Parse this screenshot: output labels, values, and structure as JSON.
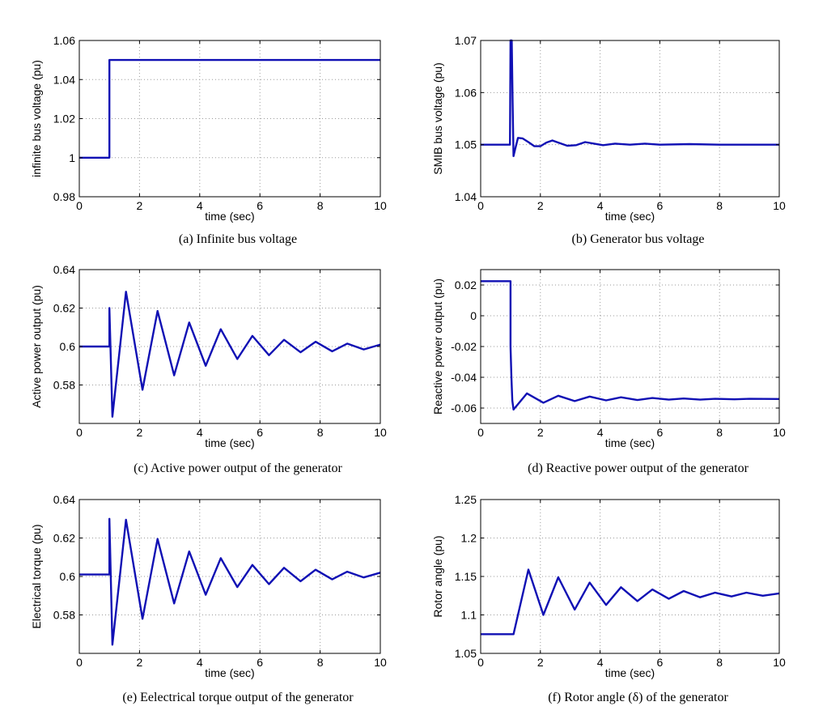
{
  "chart_data": [
    {
      "type": "line",
      "caption": "(a)  Infinite bus voltage",
      "xlabel": "time (sec)",
      "ylabel": "infinite bus voltage (pu)",
      "xlim": [
        0,
        10
      ],
      "ylim": [
        0.98,
        1.06
      ],
      "xticks": [
        0,
        2,
        4,
        6,
        8,
        10
      ],
      "yticks": [
        0.98,
        1,
        1.02,
        1.04,
        1.06
      ],
      "yticklabels": [
        "0.98",
        "1",
        "1.02",
        "1.04",
        "1.06"
      ],
      "grid": true,
      "series": [
        {
          "color": "#1010b4",
          "x": [
            0,
            1,
            1,
            10
          ],
          "y": [
            1.0,
            1.0,
            1.05,
            1.05
          ]
        }
      ]
    },
    {
      "type": "line",
      "caption": "(b)  Generator bus voltage",
      "xlabel": "time (sec)",
      "ylabel": "SMIB bus voltage (pu)",
      "xlim": [
        0,
        10
      ],
      "ylim": [
        1.04,
        1.07
      ],
      "xticks": [
        0,
        2,
        4,
        6,
        8,
        10
      ],
      "yticks": [
        1.04,
        1.05,
        1.06,
        1.07
      ],
      "yticklabels": [
        "1.04",
        "1.05",
        "1.06",
        "1.07"
      ],
      "grid": true,
      "series": [
        {
          "color": "#1010b4",
          "x": [
            0,
            0.98,
            0.99,
            1.0,
            1.04,
            1.07,
            1.1,
            1.15,
            1.25,
            1.4,
            1.6,
            1.8,
            2.0,
            2.2,
            2.4,
            2.6,
            2.9,
            3.2,
            3.5,
            3.8,
            4.1,
            4.5,
            5.0,
            5.5,
            6.0,
            7.0,
            8.0,
            9.0,
            10.0
          ],
          "y": [
            1.05,
            1.05,
            1.058,
            1.07,
            1.07,
            1.058,
            1.0478,
            1.049,
            1.0513,
            1.0512,
            1.0505,
            1.0497,
            1.0497,
            1.0504,
            1.0508,
            1.0504,
            1.0498,
            1.0499,
            1.0505,
            1.0502,
            1.0499,
            1.0502,
            1.05,
            1.0502,
            1.05,
            1.0501,
            1.05,
            1.05,
            1.05
          ]
        }
      ]
    },
    {
      "type": "line",
      "caption": "(c)  Active power output of the generator",
      "xlabel": "time (sec)",
      "ylabel": "Active power output (pu)",
      "xlim": [
        0,
        10
      ],
      "ylim": [
        0.56,
        0.64
      ],
      "xticks": [
        0,
        2,
        4,
        6,
        8,
        10
      ],
      "yticks": [
        0.58,
        0.6,
        0.62,
        0.64
      ],
      "yticklabels": [
        "0.58",
        "0.6",
        "0.62",
        "0.64"
      ],
      "grid": true,
      "series": [
        {
          "color": "#1010b4",
          "x": [
            0,
            1.0,
            1.0,
            1.1,
            1.55,
            2.1,
            2.6,
            3.15,
            3.65,
            4.2,
            4.7,
            5.25,
            5.75,
            6.3,
            6.8,
            7.35,
            7.85,
            8.4,
            8.9,
            9.45,
            10.0
          ],
          "y": [
            0.6,
            0.6,
            0.62,
            0.5635,
            0.6285,
            0.5775,
            0.6185,
            0.585,
            0.6125,
            0.59,
            0.609,
            0.5935,
            0.6055,
            0.5955,
            0.6035,
            0.597,
            0.6025,
            0.5975,
            0.6015,
            0.5985,
            0.601
          ]
        }
      ]
    },
    {
      "type": "line",
      "caption": "(d)  Reactive power output of the generator",
      "xlabel": "time (sec)",
      "ylabel": "Reactive power output (pu)",
      "xlim": [
        0,
        10
      ],
      "ylim": [
        -0.07,
        0.03
      ],
      "xticks": [
        0,
        2,
        4,
        6,
        8,
        10
      ],
      "yticks": [
        -0.06,
        -0.04,
        -0.02,
        0,
        0.02
      ],
      "yticklabels": [
        "-0.06",
        "-0.04",
        "-0.02",
        "0",
        "0.02"
      ],
      "grid": true,
      "series": [
        {
          "color": "#1010b4",
          "x": [
            0,
            1.0,
            1.0,
            1.03,
            1.06,
            1.1,
            1.55,
            2.1,
            2.6,
            3.15,
            3.65,
            4.2,
            4.7,
            5.25,
            5.75,
            6.3,
            6.8,
            7.35,
            7.85,
            8.5,
            9.0,
            10.0
          ],
          "y": [
            0.0225,
            0.0225,
            -0.02,
            -0.04,
            -0.055,
            -0.061,
            -0.0505,
            -0.0565,
            -0.052,
            -0.0555,
            -0.0525,
            -0.055,
            -0.053,
            -0.0548,
            -0.0535,
            -0.0545,
            -0.0538,
            -0.0545,
            -0.054,
            -0.0543,
            -0.054,
            -0.0541
          ]
        }
      ]
    },
    {
      "type": "line",
      "caption": "(e)  Eelectrical torque output of the generator",
      "xlabel": "time (sec)",
      "ylabel": "Electrical torque (pu)",
      "xlim": [
        0,
        10
      ],
      "ylim": [
        0.56,
        0.64
      ],
      "xticks": [
        0,
        2,
        4,
        6,
        8,
        10
      ],
      "yticks": [
        0.58,
        0.6,
        0.62,
        0.64
      ],
      "yticklabels": [
        "0.58",
        "0.6",
        "0.62",
        "0.64"
      ],
      "grid": true,
      "series": [
        {
          "color": "#1010b4",
          "x": [
            0,
            1.0,
            1.0,
            1.1,
            1.55,
            2.1,
            2.6,
            3.15,
            3.65,
            4.2,
            4.7,
            5.25,
            5.75,
            6.3,
            6.8,
            7.35,
            7.85,
            8.4,
            8.9,
            9.45,
            10.0
          ],
          "y": [
            0.601,
            0.601,
            0.63,
            0.5645,
            0.6295,
            0.578,
            0.6195,
            0.586,
            0.613,
            0.5905,
            0.6095,
            0.5945,
            0.606,
            0.596,
            0.6045,
            0.5975,
            0.6035,
            0.5985,
            0.6025,
            0.5995,
            0.602
          ]
        }
      ]
    },
    {
      "type": "line",
      "caption": "(f)  Rotor angle (δ) of the generator",
      "xlabel": "time (sec)",
      "ylabel": "Rotor angle (pu)",
      "xlim": [
        0,
        10
      ],
      "ylim": [
        1.05,
        1.25
      ],
      "xticks": [
        0,
        2,
        4,
        6,
        8,
        10
      ],
      "yticks": [
        1.05,
        1.1,
        1.15,
        1.2,
        1.25
      ],
      "yticklabels": [
        "1.05",
        "1.1",
        "1.15",
        "1.2",
        "1.25"
      ],
      "grid": true,
      "series": [
        {
          "color": "#1010b4",
          "x": [
            0,
            1.1,
            1.6,
            2.1,
            2.6,
            3.15,
            3.65,
            4.2,
            4.7,
            5.25,
            5.75,
            6.3,
            6.8,
            7.35,
            7.85,
            8.4,
            8.9,
            9.45,
            10.0
          ],
          "y": [
            1.075,
            1.075,
            1.159,
            1.1,
            1.149,
            1.107,
            1.142,
            1.113,
            1.136,
            1.118,
            1.133,
            1.121,
            1.131,
            1.123,
            1.129,
            1.124,
            1.129,
            1.125,
            1.128
          ]
        }
      ]
    }
  ]
}
